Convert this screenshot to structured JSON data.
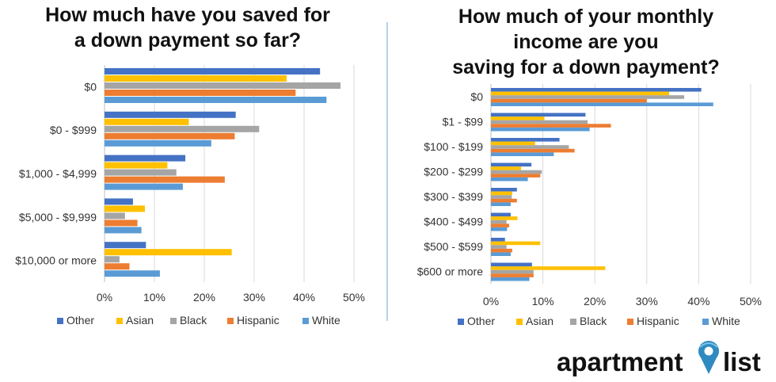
{
  "chart_data": [
    {
      "type": "bar",
      "orientation": "horizontal",
      "title": "How much have you saved for a down payment so far?",
      "title_lines": [
        "How much have you saved for",
        "a down payment so far?"
      ],
      "categories": [
        "$0",
        "$0 - $999",
        "$1,000 - $4,999",
        "$5,000 - $9,999",
        "$10,000 or more"
      ],
      "series": [
        {
          "name": "Other",
          "color": "#4472C4",
          "values": [
            43.2,
            26.3,
            16.2,
            5.7,
            8.3
          ]
        },
        {
          "name": "Asian",
          "color": "#FFC000",
          "values": [
            36.5,
            16.9,
            12.6,
            8.1,
            25.5
          ]
        },
        {
          "name": "Black",
          "color": "#A5A5A5",
          "values": [
            47.3,
            31.0,
            14.4,
            4.1,
            3.0
          ]
        },
        {
          "name": "Hispanic",
          "color": "#ED7D31",
          "values": [
            38.3,
            26.1,
            24.1,
            6.6,
            5.0
          ]
        },
        {
          "name": "White",
          "color": "#5B9BD5",
          "values": [
            44.5,
            21.4,
            15.7,
            7.4,
            11.1
          ]
        }
      ],
      "xlim": [
        0,
        50
      ],
      "ticks": [
        "0%",
        "10%",
        "20%",
        "30%",
        "40%",
        "50%"
      ],
      "grid": true,
      "legend": "bottom"
    },
    {
      "type": "bar",
      "orientation": "horizontal",
      "title": "How much of your monthly income are you saving for a down payment?",
      "title_lines": [
        "How much of your monthly",
        "income are you",
        "saving for a down payment?"
      ],
      "categories": [
        "$0",
        "$1 - $99",
        "$100 - $199",
        "$200 - $299",
        "$300 - $399",
        "$400 - $499",
        "$500 - $599",
        "$600 or more"
      ],
      "series": [
        {
          "name": "Other",
          "color": "#4472C4",
          "values": [
            40.5,
            18.2,
            13.2,
            7.8,
            5.0,
            3.8,
            2.7,
            7.9
          ]
        },
        {
          "name": "Asian",
          "color": "#FFC000",
          "values": [
            34.3,
            10.3,
            8.5,
            5.8,
            4.1,
            5.1,
            9.5,
            22.0
          ]
        },
        {
          "name": "Black",
          "color": "#A5A5A5",
          "values": [
            37.2,
            18.6,
            15.0,
            9.8,
            4.0,
            3.0,
            3.0,
            8.2
          ]
        },
        {
          "name": "Hispanic",
          "color": "#ED7D31",
          "values": [
            30.0,
            23.1,
            16.1,
            9.5,
            5.0,
            3.5,
            4.1,
            8.2
          ]
        },
        {
          "name": "White",
          "color": "#5B9BD5",
          "values": [
            42.8,
            19.0,
            12.1,
            7.1,
            3.8,
            3.1,
            3.8,
            7.4
          ]
        }
      ],
      "xlim": [
        0,
        50
      ],
      "ticks": [
        "0%",
        "10%",
        "20%",
        "30%",
        "40%",
        "50%"
      ],
      "grid": true,
      "legend": "bottom"
    }
  ],
  "logo": {
    "text_left": "apartment",
    "text_right": "list"
  }
}
